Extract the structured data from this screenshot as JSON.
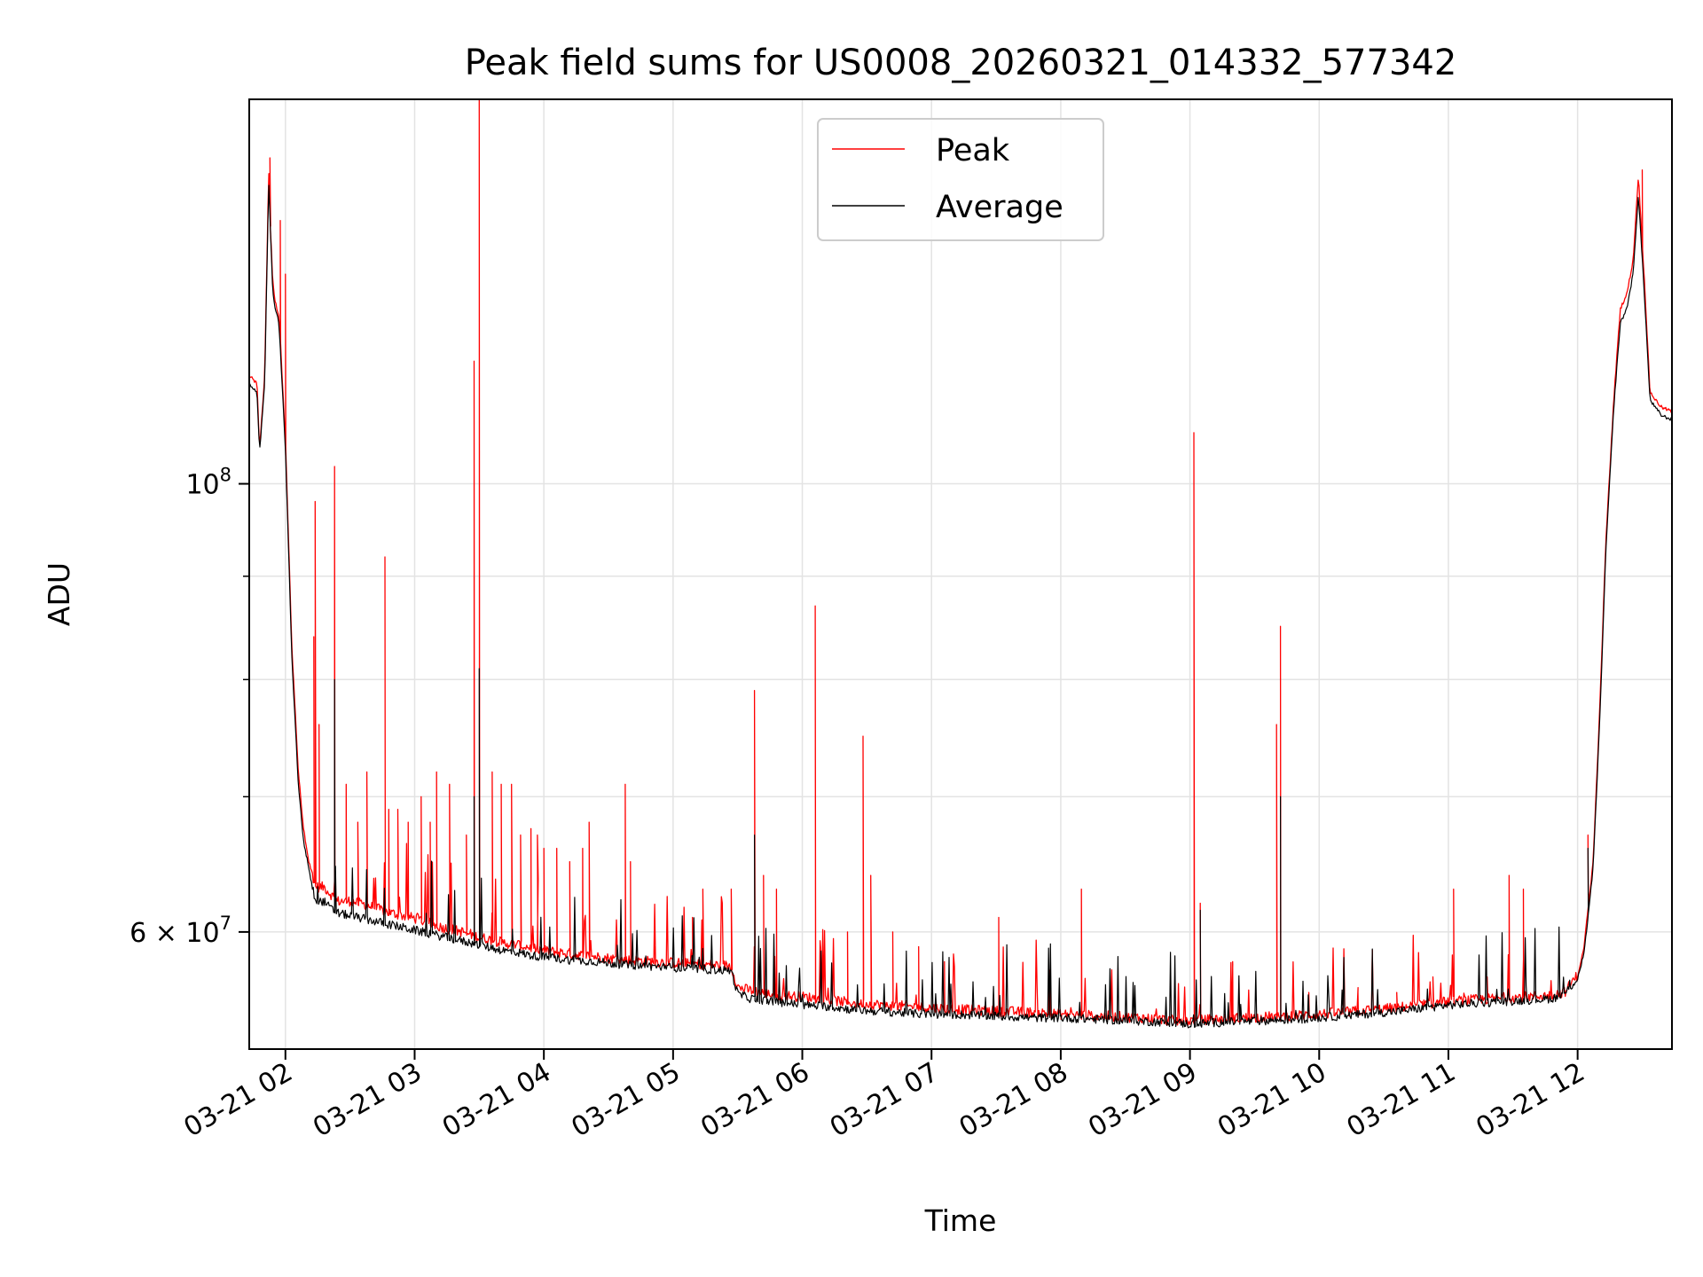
{
  "chart_data": {
    "type": "line",
    "title": "Peak field sums for US0008_20260321_014332_577342",
    "xlabel": "Time",
    "ylabel": "ADU",
    "x_unit": "hour of 2026-03-21",
    "xlim": [
      1.72,
      12.73
    ],
    "ylim": [
      52500000,
      155000000
    ],
    "yscale": "log",
    "grid": true,
    "legend_position": "top-center",
    "x_ticks": [
      {
        "value": 2,
        "label": "03-21 02"
      },
      {
        "value": 3,
        "label": "03-21 03"
      },
      {
        "value": 4,
        "label": "03-21 04"
      },
      {
        "value": 5,
        "label": "03-21 05"
      },
      {
        "value": 6,
        "label": "03-21 06"
      },
      {
        "value": 7,
        "label": "03-21 07"
      },
      {
        "value": 8,
        "label": "03-21 08"
      },
      {
        "value": 9,
        "label": "03-21 09"
      },
      {
        "value": 10,
        "label": "03-21 10"
      },
      {
        "value": 11,
        "label": "03-21 11"
      },
      {
        "value": 12,
        "label": "03-21 12"
      }
    ],
    "y_major_ticks": [
      {
        "value": 100000000,
        "base": "10",
        "exp": "8"
      },
      {
        "value": 60000000,
        "mant": "6 × 10",
        "exp": "7"
      }
    ],
    "y_minor_ticks": [
      70000000,
      80000000,
      90000000
    ],
    "series": [
      {
        "name": "Peak",
        "color": "#ff0000",
        "x": [
          1.72,
          1.78,
          1.8,
          1.84,
          1.87,
          1.9,
          1.92,
          1.95,
          2.0,
          2.05,
          2.1,
          2.14,
          2.18,
          2.22,
          2.25,
          2.3,
          2.35,
          2.4,
          2.5,
          2.6,
          2.7,
          2.8,
          2.9,
          3.0,
          3.1,
          3.2,
          3.3,
          3.4,
          3.5,
          3.6,
          3.7,
          3.8,
          3.9,
          4.0,
          4.2,
          4.4,
          4.5,
          4.6,
          4.8,
          5.0,
          5.2,
          5.45,
          5.5,
          5.6,
          5.8,
          6.0,
          6.2,
          6.4,
          6.6,
          6.8,
          7.0,
          7.2,
          7.5,
          7.8,
          8.0,
          8.3,
          8.6,
          8.9,
          9.0,
          9.2,
          9.5,
          9.8,
          10.0,
          10.3,
          10.6,
          10.9,
          11.0,
          11.2,
          11.4,
          11.6,
          11.8,
          11.9,
          12.0,
          12.05,
          12.12,
          12.17,
          12.22,
          12.28,
          12.33,
          12.38,
          12.43,
          12.47,
          12.52,
          12.56,
          12.6,
          12.65,
          12.73
        ],
        "y": [
          113000000,
          112000000,
          104000000,
          113000000,
          143000000,
          126000000,
          123000000,
          121000000,
          105000000,
          83000000,
          72000000,
          67500000,
          65000000,
          63500000,
          63000000,
          63000000,
          62500000,
          62000000,
          62000000,
          61800000,
          61500000,
          61200000,
          61000000,
          60800000,
          60500000,
          60200000,
          60000000,
          59800000,
          59500000,
          59300000,
          59100000,
          59000000,
          58800000,
          58600000,
          58400000,
          58200000,
          58100000,
          58000000,
          57900000,
          57800000,
          57700000,
          57600000,
          56200000,
          56000000,
          55700000,
          55600000,
          55400000,
          55200000,
          55100000,
          55000000,
          54900000,
          54800000,
          54700000,
          54600000,
          54500000,
          54400000,
          54300000,
          54100000,
          54100000,
          54200000,
          54300000,
          54400000,
          54500000,
          54700000,
          54900000,
          55200000,
          55300000,
          55400000,
          55500000,
          55600000,
          55700000,
          55900000,
          57000000,
          59000000,
          65000000,
          77000000,
          94000000,
          110000000,
          122000000,
          124000000,
          129000000,
          142000000,
          125000000,
          111000000,
          110000000,
          109000000,
          108500000
        ],
        "spikes": [
          [
            1.88,
            145000000
          ],
          [
            1.96,
            135000000
          ],
          [
            2.0,
            127000000
          ],
          [
            2.23,
            98000000
          ],
          [
            2.38,
            102000000
          ],
          [
            2.22,
            84000000
          ],
          [
            2.26,
            76000000
          ],
          [
            2.47,
            71000000
          ],
          [
            2.56,
            68000000
          ],
          [
            2.63,
            72000000
          ],
          [
            2.77,
            92000000
          ],
          [
            2.8,
            69000000
          ],
          [
            2.87,
            69000000
          ],
          [
            2.95,
            68000000
          ],
          [
            3.05,
            70000000
          ],
          [
            3.12,
            68000000
          ],
          [
            3.17,
            72000000
          ],
          [
            3.27,
            71000000
          ],
          [
            3.4,
            67000000
          ],
          [
            3.46,
            115000000
          ],
          [
            3.5,
            155000000
          ],
          [
            3.6,
            72000000
          ],
          [
            3.67,
            71000000
          ],
          [
            3.75,
            71000000
          ],
          [
            3.82,
            67000000
          ],
          [
            3.9,
            67500000
          ],
          [
            3.95,
            67000000
          ],
          [
            4.0,
            66000000
          ],
          [
            4.1,
            66000000
          ],
          [
            4.2,
            65000000
          ],
          [
            4.3,
            66000000
          ],
          [
            4.35,
            68000000
          ],
          [
            4.63,
            71000000
          ],
          [
            4.67,
            65000000
          ],
          [
            4.86,
            59000000
          ],
          [
            5.15,
            61000000
          ],
          [
            5.23,
            63000000
          ],
          [
            5.45,
            63000000
          ],
          [
            5.63,
            79000000
          ],
          [
            5.7,
            64000000
          ],
          [
            5.8,
            63000000
          ],
          [
            6.1,
            87000000
          ],
          [
            6.35,
            60000000
          ],
          [
            6.47,
            75000000
          ],
          [
            6.53,
            64000000
          ],
          [
            6.7,
            60000000
          ],
          [
            6.9,
            59000000
          ],
          [
            7.1,
            58000000
          ],
          [
            7.52,
            61000000
          ],
          [
            8.16,
            63000000
          ],
          [
            9.03,
            106000000
          ],
          [
            9.08,
            62000000
          ],
          [
            9.33,
            58000000
          ],
          [
            9.67,
            76000000
          ],
          [
            9.7,
            85000000
          ],
          [
            9.92,
            56000000
          ],
          [
            10.3,
            56000000
          ],
          [
            10.6,
            56000000
          ],
          [
            10.88,
            57000000
          ],
          [
            11.04,
            63000000
          ],
          [
            11.3,
            57000000
          ],
          [
            11.47,
            64000000
          ],
          [
            11.58,
            63000000
          ],
          [
            11.8,
            56000000
          ],
          [
            12.08,
            67000000
          ],
          [
            12.5,
            143000000
          ]
        ]
      },
      {
        "name": "Average",
        "color": "#000000",
        "x": [
          1.72,
          1.78,
          1.8,
          1.84,
          1.87,
          1.9,
          1.92,
          1.95,
          2.0,
          2.05,
          2.1,
          2.14,
          2.18,
          2.22,
          2.25,
          2.3,
          2.35,
          2.4,
          2.5,
          2.6,
          2.7,
          2.8,
          2.9,
          3.0,
          3.1,
          3.2,
          3.3,
          3.4,
          3.5,
          3.6,
          3.7,
          3.8,
          3.9,
          4.0,
          4.2,
          4.4,
          4.5,
          4.6,
          4.8,
          5.0,
          5.2,
          5.45,
          5.5,
          5.6,
          5.8,
          6.0,
          6.2,
          6.4,
          6.6,
          6.8,
          7.0,
          7.2,
          7.5,
          7.8,
          8.0,
          8.3,
          8.6,
          8.9,
          9.0,
          9.2,
          9.5,
          9.8,
          10.0,
          10.3,
          10.6,
          10.9,
          11.0,
          11.2,
          11.4,
          11.6,
          11.8,
          11.9,
          12.0,
          12.05,
          12.12,
          12.17,
          12.22,
          12.28,
          12.33,
          12.38,
          12.43,
          12.47,
          12.52,
          12.56,
          12.6,
          12.65,
          12.73
        ],
        "y": [
          112000000,
          111000000,
          103500000,
          112000000,
          141000000,
          125000000,
          122000000,
          120000000,
          104000000,
          82000000,
          71000000,
          66500000,
          64500000,
          62500000,
          62000000,
          62000000,
          61500000,
          61200000,
          61000000,
          60800000,
          60600000,
          60400000,
          60200000,
          60000000,
          59800000,
          59600000,
          59400000,
          59200000,
          59000000,
          58800000,
          58600000,
          58500000,
          58300000,
          58200000,
          58000000,
          57900000,
          57800000,
          57700000,
          57600000,
          57500000,
          57400000,
          57300000,
          55800000,
          55500000,
          55300000,
          55100000,
          55000000,
          54800000,
          54700000,
          54600000,
          54500000,
          54500000,
          54400000,
          54300000,
          54300000,
          54200000,
          54100000,
          54000000,
          53900000,
          54000000,
          54100000,
          54200000,
          54300000,
          54500000,
          54700000,
          55000000,
          55100000,
          55200000,
          55300000,
          55400000,
          55500000,
          55800000,
          56800000,
          58500000,
          64500000,
          76000000,
          93000000,
          109000000,
          120000000,
          122000000,
          127000000,
          139000000,
          123000000,
          110000000,
          109000000,
          108000000,
          107500000
        ],
        "spikes": [
          [
            2.38,
            80000000
          ],
          [
            3.5,
            81000000
          ],
          [
            5.63,
            67000000
          ],
          [
            9.08,
            61500000
          ],
          [
            9.7,
            70000000
          ],
          [
            12.08,
            66000000
          ],
          [
            3.46,
            70000000
          ]
        ]
      }
    ]
  }
}
